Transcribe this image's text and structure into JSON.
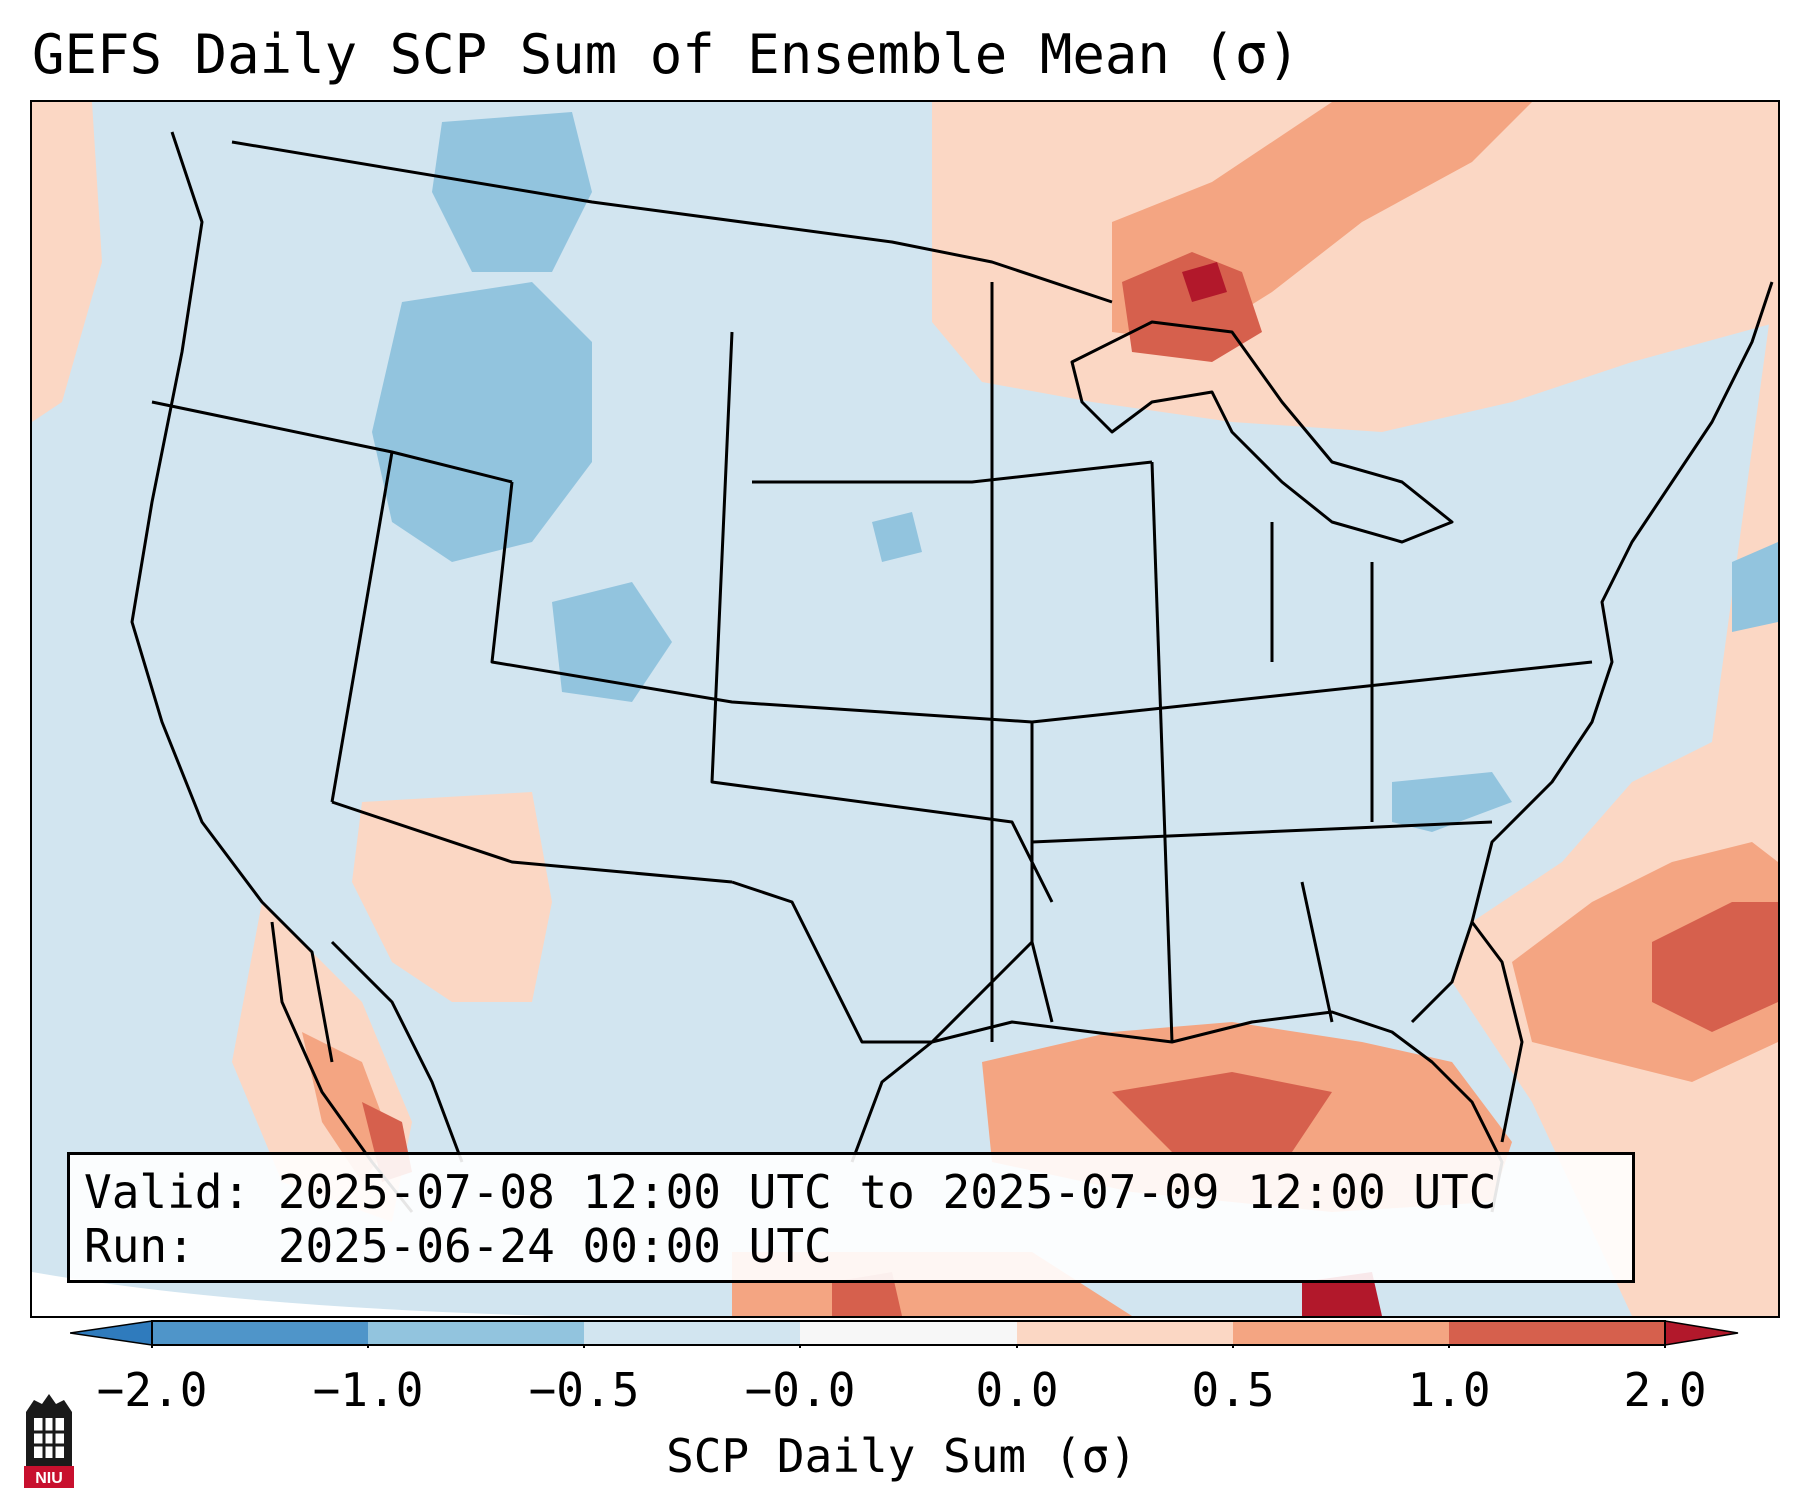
{
  "title": "GEFS Daily SCP Sum of Ensemble Mean (σ)",
  "info": {
    "valid_line": "Valid: 2025-07-08 12:00 UTC to 2025-07-09 12:00 UTC",
    "run_line": "Run:   2025-06-24 00:00 UTC"
  },
  "colorbar": {
    "label": "SCP Daily Sum (σ)",
    "ticks": [
      "−2.0",
      "−1.0",
      "−0.5",
      "−0.0",
      "0.0",
      "0.5",
      "1.0",
      "2.0"
    ],
    "colors": {
      "below_min": "#2f7bbd",
      "bin_neg2_neg1": "#4f95c9",
      "bin_neg1_neg05": "#92c4de",
      "bin_neg05_0": "#d2e5f0",
      "bin_0_0": "#f7f7f7",
      "bin_0_05": "#fbd7c4",
      "bin_05_1": "#f4a582",
      "bin_1_2": "#d6604d",
      "above_max": "#b2182b"
    }
  },
  "logo": {
    "name": "NIU"
  },
  "map": {
    "region": "Contiguous United States",
    "background_value_color": "#d2e5f0",
    "outline_color": "#000000"
  }
}
